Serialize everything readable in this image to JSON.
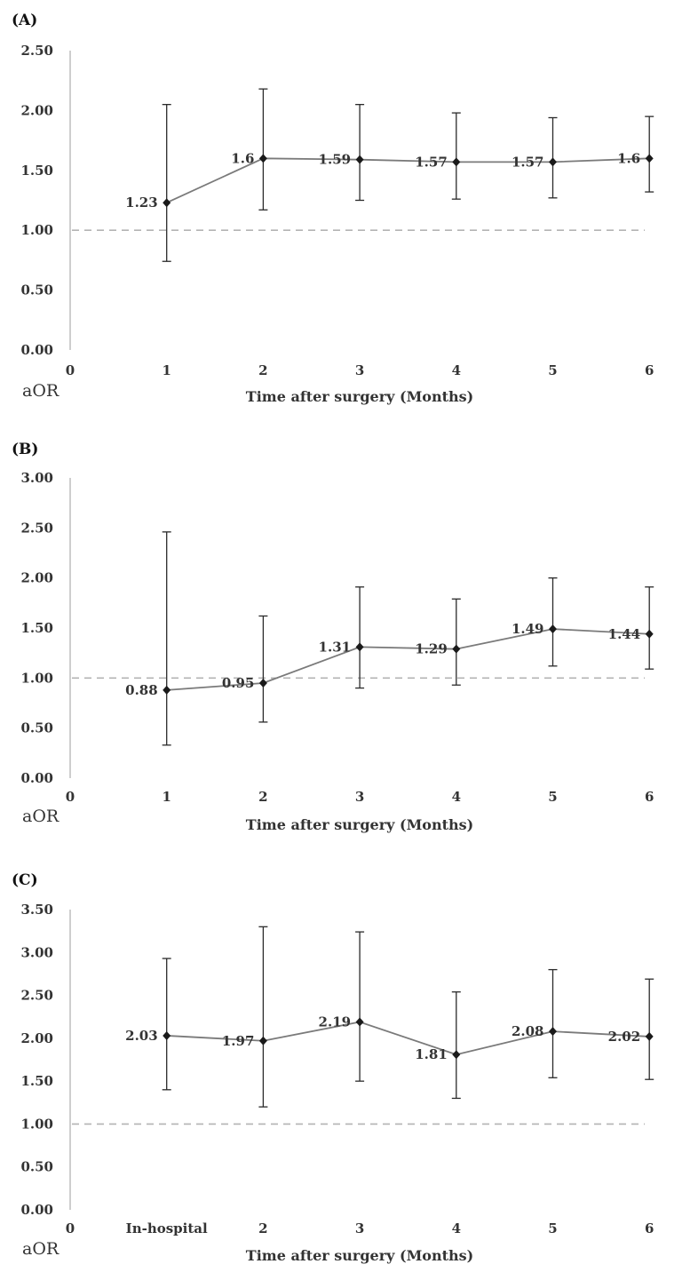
{
  "chart_data": [
    {
      "panel": "(A)",
      "type": "line",
      "x_ticks": [
        "0",
        "1",
        "2",
        "3",
        "4",
        "5",
        "6"
      ],
      "y_ticks": [
        "0.00",
        "0.50",
        "1.00",
        "1.50",
        "2.00",
        "2.50"
      ],
      "ylim": [
        0,
        2.5
      ],
      "ylabel": "aOR",
      "xlabel": "Time after surgery (Months)",
      "reference_line": 1.0,
      "points": [
        {
          "x": 1,
          "y": 1.23,
          "label": "1.23",
          "lo": 0.74,
          "hi": 2.05
        },
        {
          "x": 2,
          "y": 1.6,
          "label": "1.6",
          "lo": 1.17,
          "hi": 2.18
        },
        {
          "x": 3,
          "y": 1.59,
          "label": "1.59",
          "lo": 1.25,
          "hi": 2.05
        },
        {
          "x": 4,
          "y": 1.57,
          "label": "1.57",
          "lo": 1.26,
          "hi": 1.98
        },
        {
          "x": 5,
          "y": 1.57,
          "label": "1.57",
          "lo": 1.27,
          "hi": 1.94
        },
        {
          "x": 6,
          "y": 1.6,
          "label": "1.6",
          "lo": 1.32,
          "hi": 1.95
        }
      ]
    },
    {
      "panel": "(B)",
      "type": "line",
      "x_ticks": [
        "0",
        "1",
        "2",
        "3",
        "4",
        "5",
        "6"
      ],
      "y_ticks": [
        "0.00",
        "0.50",
        "1.00",
        "1.50",
        "2.00",
        "2.50",
        "3.00"
      ],
      "ylim": [
        0,
        3.0
      ],
      "ylabel": "aOR",
      "xlabel": "Time after surgery (Months)",
      "reference_line": 1.0,
      "points": [
        {
          "x": 1,
          "y": 0.88,
          "label": "0.88",
          "lo": 0.33,
          "hi": 2.46
        },
        {
          "x": 2,
          "y": 0.95,
          "label": "0.95",
          "lo": 0.56,
          "hi": 1.62
        },
        {
          "x": 3,
          "y": 1.31,
          "label": "1.31",
          "lo": 0.9,
          "hi": 1.91
        },
        {
          "x": 4,
          "y": 1.29,
          "label": "1.29",
          "lo": 0.93,
          "hi": 1.79
        },
        {
          "x": 5,
          "y": 1.49,
          "label": "1.49",
          "lo": 1.12,
          "hi": 2.0
        },
        {
          "x": 6,
          "y": 1.44,
          "label": "1.44",
          "lo": 1.09,
          "hi": 1.91
        }
      ]
    },
    {
      "panel": "(C)",
      "type": "line",
      "x_ticks": [
        "0",
        "In-hospital",
        "2",
        "3",
        "4",
        "5",
        "6"
      ],
      "y_ticks": [
        "0.00",
        "0.50",
        "1.00",
        "1.50",
        "2.00",
        "2.50",
        "3.00",
        "3.50"
      ],
      "ylim": [
        0,
        3.5
      ],
      "ylabel": "aOR",
      "xlabel": "Time after surgery (Months)",
      "reference_line": 1.0,
      "points": [
        {
          "x": 1,
          "y": 2.03,
          "label": "2.03",
          "lo": 1.4,
          "hi": 2.93
        },
        {
          "x": 2,
          "y": 1.97,
          "label": "1.97",
          "lo": 1.2,
          "hi": 3.3
        },
        {
          "x": 3,
          "y": 2.19,
          "label": "2.19",
          "lo": 1.5,
          "hi": 3.24
        },
        {
          "x": 4,
          "y": 1.81,
          "label": "1.81",
          "lo": 1.3,
          "hi": 2.54
        },
        {
          "x": 5,
          "y": 2.08,
          "label": "2.08",
          "lo": 1.54,
          "hi": 2.8
        },
        {
          "x": 6,
          "y": 2.02,
          "label": "2.02",
          "lo": 1.52,
          "hi": 2.69
        }
      ]
    }
  ],
  "colors": {
    "series_line": "#7a7a7a",
    "marker": "#1a1a1a",
    "errorbar": "#2a2a2a",
    "reference_line": "#b3b3b3",
    "axis": "#bdbdbd",
    "text": "#333333"
  }
}
